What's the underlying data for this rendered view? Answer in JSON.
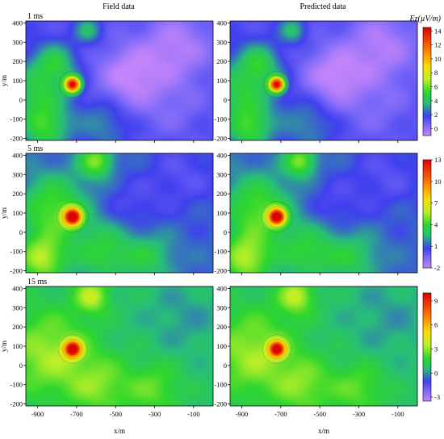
{
  "columns": [
    "Field data",
    "Predicted data"
  ],
  "colorbar_title": "Ez(µV/m)",
  "chart_data": [
    {
      "type": "heatmap",
      "time_label": "1 ms",
      "panels": [
        "Field data",
        "Predicted data"
      ],
      "xlabel": "x/m",
      "ylabel": "y/m",
      "xlim": [
        -960,
        0
      ],
      "ylim": [
        -210,
        410
      ],
      "x_ticks": [
        -900,
        -700,
        -500,
        -300,
        -100
      ],
      "y_ticks": [
        400,
        300,
        200,
        100,
        0,
        -100,
        -200
      ],
      "colorbar_ticks": [
        14,
        12,
        10,
        8,
        6,
        4,
        2,
        0
      ],
      "clim": [
        -1,
        14.5
      ],
      "background_value": 1.4,
      "anomalies": [
        {
          "x": -720,
          "y": 80,
          "peak": 14,
          "radius": 28
        },
        {
          "x": -810,
          "y": 190,
          "peak": 4.2,
          "radius": 70
        },
        {
          "x": -900,
          "y": 40,
          "peak": 4.5,
          "radius": 110
        },
        {
          "x": -860,
          "y": -150,
          "peak": 4.8,
          "radius": 85
        },
        {
          "x": -640,
          "y": 360,
          "peak": 3.8,
          "radius": 45
        },
        {
          "x": -560,
          "y": -120,
          "peak": 3,
          "radius": 90
        },
        {
          "x": -430,
          "y": 120,
          "peak": -1,
          "radius": 120
        },
        {
          "x": -180,
          "y": 280,
          "peak": -0.6,
          "radius": 130
        },
        {
          "x": -200,
          "y": -40,
          "peak": 0.6,
          "radius": 120
        }
      ]
    },
    {
      "type": "heatmap",
      "time_label": "5 ms",
      "panels": [
        "Field data",
        "Predicted data"
      ],
      "xlabel": "x/m",
      "ylabel": "y/m",
      "xlim": [
        -960,
        0
      ],
      "ylim": [
        -210,
        410
      ],
      "x_ticks": [
        -900,
        -700,
        -500,
        -300,
        -100
      ],
      "y_ticks": [
        400,
        300,
        200,
        100,
        0,
        -100,
        -200
      ],
      "colorbar_ticks": [
        13,
        10,
        7,
        4,
        1,
        -2
      ],
      "clim": [
        -2,
        13
      ],
      "background_value": 1.2,
      "anomalies": [
        {
          "x": -720,
          "y": 80,
          "peak": 13,
          "radius": 32
        },
        {
          "x": -820,
          "y": 120,
          "peak": 4.5,
          "radius": 120
        },
        {
          "x": -880,
          "y": -140,
          "peak": 5.5,
          "radius": 90
        },
        {
          "x": -600,
          "y": 370,
          "peak": 5,
          "radius": 60
        },
        {
          "x": -560,
          "y": -100,
          "peak": 3.8,
          "radius": 110
        },
        {
          "x": -330,
          "y": -130,
          "peak": 3.2,
          "radius": 90
        },
        {
          "x": -150,
          "y": 300,
          "peak": 0.2,
          "radius": 130
        },
        {
          "x": -420,
          "y": 120,
          "peak": 0.3,
          "radius": 110
        }
      ]
    },
    {
      "type": "heatmap",
      "time_label": "15 ms",
      "panels": [
        "Field data",
        "Predicted data"
      ],
      "xlabel": "x/m",
      "ylabel": "y/m",
      "xlim": [
        -960,
        0
      ],
      "ylim": [
        -210,
        410
      ],
      "x_ticks": [
        -900,
        -700,
        -500,
        -300,
        -100
      ],
      "y_ticks": [
        400,
        300,
        200,
        100,
        0,
        -100,
        -200
      ],
      "colorbar_ticks": [
        9,
        6,
        3,
        0,
        -3
      ],
      "clim": [
        -3.5,
        10
      ],
      "background_value": 0.8,
      "anomalies": [
        {
          "x": -720,
          "y": 85,
          "peak": 10,
          "radius": 30
        },
        {
          "x": -840,
          "y": 60,
          "peak": 3.2,
          "radius": 160
        },
        {
          "x": -620,
          "y": 360,
          "peak": 3.5,
          "radius": 60
        },
        {
          "x": -580,
          "y": -110,
          "peak": 2.6,
          "radius": 110
        },
        {
          "x": -300,
          "y": -120,
          "peak": 2.4,
          "radius": 100
        },
        {
          "x": -150,
          "y": 250,
          "peak": 0.1,
          "radius": 140
        }
      ]
    }
  ]
}
